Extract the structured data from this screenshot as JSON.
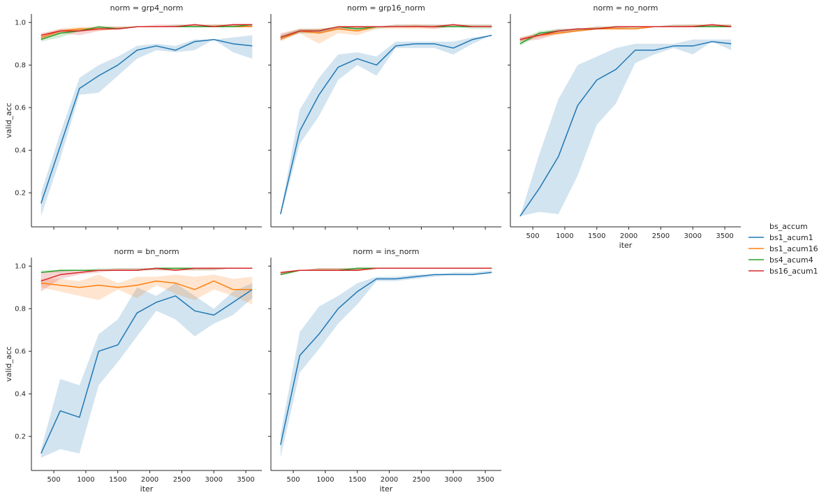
{
  "chart_data": {
    "type": "line",
    "facet_label_prefix": "norm = ",
    "x_label": "iter",
    "y_label": "valid_acc",
    "xlim": [
      150,
      3750
    ],
    "ylim": [
      0.04,
      1.04
    ],
    "x_ticks": [
      500,
      1000,
      1500,
      2000,
      2500,
      3000,
      3500
    ],
    "y_ticks": [
      0.2,
      0.4,
      0.6,
      0.8,
      1.0
    ],
    "x": [
      300,
      600,
      900,
      1200,
      1500,
      1800,
      2100,
      2400,
      2700,
      3000,
      3300,
      3600
    ],
    "legend": {
      "title": "bs_accum",
      "placement": "right",
      "entries": [
        "bs1_acum1",
        "bs1_acum16",
        "bs4_acum4",
        "bs16_acum1"
      ]
    },
    "colors": {
      "bs1_acum1": "#1f77b4",
      "bs1_acum16": "#ff7f0e",
      "bs4_acum4": "#2ca02c",
      "bs16_acum1": "#d62728"
    },
    "panels": [
      {
        "norm": "grp4_norm",
        "series": [
          {
            "name": "bs1_acum1",
            "values": [
              0.15,
              0.42,
              0.69,
              0.75,
              0.8,
              0.87,
              0.89,
              0.87,
              0.91,
              0.92,
              0.9,
              0.89
            ],
            "lower": [
              0.09,
              0.36,
              0.66,
              0.67,
              0.75,
              0.83,
              0.87,
              0.86,
              0.87,
              0.92,
              0.86,
              0.83
            ],
            "upper": [
              0.2,
              0.48,
              0.74,
              0.8,
              0.84,
              0.89,
              0.9,
              0.89,
              0.92,
              0.92,
              0.93,
              0.94
            ]
          },
          {
            "name": "bs1_acum16",
            "values": [
              0.93,
              0.96,
              0.97,
              0.97,
              0.97,
              0.98,
              0.98,
              0.98,
              0.98,
              0.98,
              0.98,
              0.98
            ],
            "lower": [
              0.92,
              0.95,
              0.96,
              0.96,
              0.97,
              0.98,
              0.98,
              0.98,
              0.98,
              0.98,
              0.98,
              0.98
            ],
            "upper": [
              0.94,
              0.97,
              0.98,
              0.98,
              0.98,
              0.98,
              0.98,
              0.98,
              0.98,
              0.99,
              0.99,
              0.99
            ]
          },
          {
            "name": "bs4_acum4",
            "values": [
              0.92,
              0.95,
              0.96,
              0.98,
              0.97,
              0.98,
              0.98,
              0.98,
              0.98,
              0.98,
              0.98,
              0.99
            ],
            "lower": [
              0.91,
              0.93,
              0.96,
              0.97,
              0.97,
              0.98,
              0.98,
              0.98,
              0.98,
              0.98,
              0.98,
              0.98
            ],
            "upper": [
              0.93,
              0.96,
              0.97,
              0.98,
              0.98,
              0.98,
              0.98,
              0.99,
              0.99,
              0.99,
              0.99,
              0.99
            ]
          },
          {
            "name": "bs16_acum1",
            "values": [
              0.94,
              0.96,
              0.96,
              0.97,
              0.97,
              0.98,
              0.98,
              0.98,
              0.99,
              0.98,
              0.99,
              0.99
            ],
            "lower": [
              0.92,
              0.95,
              0.94,
              0.96,
              0.97,
              0.98,
              0.98,
              0.98,
              0.98,
              0.98,
              0.98,
              0.98
            ],
            "upper": [
              0.95,
              0.97,
              0.97,
              0.98,
              0.98,
              0.98,
              0.99,
              0.99,
              0.99,
              0.99,
              0.99,
              0.99
            ]
          }
        ]
      },
      {
        "norm": "grp16_norm",
        "series": [
          {
            "name": "bs1_acum1",
            "values": [
              0.1,
              0.49,
              0.66,
              0.79,
              0.83,
              0.8,
              0.89,
              0.9,
              0.9,
              0.88,
              0.92,
              0.94
            ],
            "lower": [
              0.09,
              0.43,
              0.56,
              0.73,
              0.8,
              0.75,
              0.88,
              0.88,
              0.88,
              0.85,
              0.9,
              0.94
            ],
            "upper": [
              0.11,
              0.59,
              0.74,
              0.85,
              0.86,
              0.84,
              0.91,
              0.91,
              0.91,
              0.91,
              0.93,
              0.94
            ]
          },
          {
            "name": "bs1_acum16",
            "values": [
              0.92,
              0.96,
              0.95,
              0.97,
              0.96,
              0.98,
              0.98,
              0.98,
              0.98,
              0.98,
              0.98,
              0.98
            ],
            "lower": [
              0.91,
              0.95,
              0.9,
              0.95,
              0.94,
              0.97,
              0.97,
              0.97,
              0.97,
              0.98,
              0.98,
              0.98
            ],
            "upper": [
              0.94,
              0.97,
              0.97,
              0.98,
              0.98,
              0.98,
              0.98,
              0.99,
              0.98,
              0.98,
              0.98,
              0.98
            ]
          },
          {
            "name": "bs4_acum4",
            "values": [
              0.93,
              0.96,
              0.96,
              0.98,
              0.97,
              0.98,
              0.98,
              0.98,
              0.98,
              0.98,
              0.98,
              0.98
            ],
            "lower": [
              0.92,
              0.95,
              0.95,
              0.97,
              0.96,
              0.97,
              0.98,
              0.98,
              0.98,
              0.98,
              0.97,
              0.97
            ],
            "upper": [
              0.94,
              0.97,
              0.97,
              0.98,
              0.98,
              0.98,
              0.99,
              0.99,
              0.99,
              0.99,
              0.99,
              0.99
            ]
          },
          {
            "name": "bs16_acum1",
            "values": [
              0.93,
              0.96,
              0.96,
              0.98,
              0.98,
              0.98,
              0.98,
              0.98,
              0.98,
              0.99,
              0.98,
              0.98
            ],
            "lower": [
              0.92,
              0.95,
              0.95,
              0.97,
              0.97,
              0.98,
              0.98,
              0.98,
              0.97,
              0.98,
              0.98,
              0.98
            ],
            "upper": [
              0.95,
              0.97,
              0.97,
              0.98,
              0.98,
              0.98,
              0.99,
              0.99,
              0.99,
              0.99,
              0.99,
              0.99
            ]
          }
        ]
      },
      {
        "norm": "no_norm",
        "series": [
          {
            "name": "bs1_acum1",
            "values": [
              0.09,
              0.22,
              0.37,
              0.61,
              0.73,
              0.78,
              0.87,
              0.87,
              0.89,
              0.89,
              0.91,
              0.9
            ],
            "lower": [
              0.09,
              0.11,
              0.1,
              0.28,
              0.52,
              0.62,
              0.81,
              0.85,
              0.88,
              0.85,
              0.91,
              0.87
            ],
            "upper": [
              0.09,
              0.38,
              0.64,
              0.8,
              0.84,
              0.88,
              0.9,
              0.9,
              0.9,
              0.92,
              0.92,
              0.92
            ]
          },
          {
            "name": "bs1_acum16",
            "values": [
              0.92,
              0.94,
              0.95,
              0.96,
              0.97,
              0.97,
              0.97,
              0.98,
              0.98,
              0.98,
              0.98,
              0.98
            ],
            "lower": [
              0.91,
              0.93,
              0.94,
              0.96,
              0.97,
              0.97,
              0.97,
              0.98,
              0.98,
              0.98,
              0.98,
              0.98
            ],
            "upper": [
              0.93,
              0.95,
              0.96,
              0.97,
              0.98,
              0.98,
              0.98,
              0.98,
              0.98,
              0.99,
              0.99,
              0.99
            ]
          },
          {
            "name": "bs4_acum4",
            "values": [
              0.9,
              0.95,
              0.96,
              0.97,
              0.97,
              0.98,
              0.98,
              0.98,
              0.98,
              0.98,
              0.98,
              0.98
            ],
            "lower": [
              0.89,
              0.94,
              0.95,
              0.96,
              0.97,
              0.97,
              0.97,
              0.98,
              0.98,
              0.98,
              0.98,
              0.98
            ],
            "upper": [
              0.92,
              0.96,
              0.97,
              0.97,
              0.98,
              0.98,
              0.98,
              0.98,
              0.99,
              0.99,
              0.99,
              0.99
            ]
          },
          {
            "name": "bs16_acum1",
            "values": [
              0.92,
              0.94,
              0.96,
              0.97,
              0.97,
              0.98,
              0.98,
              0.98,
              0.98,
              0.98,
              0.99,
              0.98
            ],
            "lower": [
              0.91,
              0.92,
              0.95,
              0.96,
              0.97,
              0.97,
              0.98,
              0.98,
              0.98,
              0.98,
              0.98,
              0.98
            ],
            "upper": [
              0.93,
              0.95,
              0.97,
              0.97,
              0.98,
              0.98,
              0.98,
              0.98,
              0.99,
              0.99,
              0.99,
              0.99
            ]
          }
        ]
      },
      {
        "norm": "bn_norm",
        "series": [
          {
            "name": "bs1_acum1",
            "values": [
              0.12,
              0.32,
              0.29,
              0.6,
              0.63,
              0.78,
              0.83,
              0.86,
              0.79,
              0.77,
              0.83,
              0.89
            ],
            "lower": [
              0.1,
              0.14,
              0.12,
              0.44,
              0.55,
              0.67,
              0.79,
              0.75,
              0.67,
              0.73,
              0.77,
              0.85
            ],
            "upper": [
              0.14,
              0.47,
              0.44,
              0.68,
              0.75,
              0.9,
              0.86,
              0.92,
              0.86,
              0.8,
              0.88,
              0.92
            ]
          },
          {
            "name": "bs1_acum16",
            "values": [
              0.92,
              0.91,
              0.9,
              0.91,
              0.9,
              0.91,
              0.93,
              0.92,
              0.89,
              0.93,
              0.89,
              0.89
            ],
            "lower": [
              0.9,
              0.88,
              0.86,
              0.84,
              0.89,
              0.85,
              0.91,
              0.87,
              0.84,
              0.89,
              0.86,
              0.82
            ],
            "upper": [
              0.94,
              0.94,
              0.93,
              0.96,
              0.92,
              0.95,
              0.95,
              0.96,
              0.95,
              0.96,
              0.94,
              0.95
            ]
          },
          {
            "name": "bs4_acum4",
            "values": [
              0.97,
              0.98,
              0.98,
              0.98,
              0.98,
              0.98,
              0.99,
              0.99,
              0.99,
              0.99,
              0.99,
              0.99
            ],
            "lower": [
              0.97,
              0.97,
              0.98,
              0.98,
              0.98,
              0.98,
              0.98,
              0.98,
              0.98,
              0.98,
              0.99,
              0.99
            ],
            "upper": [
              0.98,
              0.98,
              0.98,
              0.99,
              0.99,
              0.99,
              0.99,
              0.99,
              0.99,
              0.99,
              0.99,
              0.99
            ]
          },
          {
            "name": "bs16_acum1",
            "values": [
              0.93,
              0.96,
              0.97,
              0.98,
              0.98,
              0.98,
              0.99,
              0.98,
              0.99,
              0.99,
              0.99,
              0.99
            ],
            "lower": [
              0.88,
              0.94,
              0.96,
              0.97,
              0.98,
              0.98,
              0.98,
              0.98,
              0.98,
              0.98,
              0.99,
              0.99
            ],
            "upper": [
              0.97,
              0.98,
              0.98,
              0.98,
              0.99,
              0.99,
              0.99,
              0.99,
              0.99,
              0.99,
              0.99,
              0.99
            ]
          }
        ]
      },
      {
        "norm": "ins_norm",
        "series": [
          {
            "name": "bs1_acum1",
            "values": [
              0.16,
              0.58,
              0.68,
              0.8,
              0.88,
              0.94,
              0.94,
              0.95,
              0.96,
              0.96,
              0.96,
              0.97
            ],
            "lower": [
              0.1,
              0.5,
              0.61,
              0.73,
              0.82,
              0.93,
              0.93,
              0.94,
              0.95,
              0.96,
              0.96,
              0.97
            ],
            "upper": [
              0.21,
              0.69,
              0.81,
              0.86,
              0.92,
              0.95,
              0.95,
              0.96,
              0.96,
              0.97,
              0.97,
              0.98
            ]
          },
          {
            "name": "bs1_acum16",
            "values": [
              0.96,
              0.98,
              0.98,
              0.98,
              0.98,
              0.99,
              0.99,
              0.99,
              0.99,
              0.99,
              0.99,
              0.99
            ],
            "lower": [
              0.96,
              0.98,
              0.98,
              0.98,
              0.98,
              0.99,
              0.99,
              0.99,
              0.99,
              0.99,
              0.99,
              0.99
            ],
            "upper": [
              0.97,
              0.98,
              0.99,
              0.99,
              0.99,
              0.99,
              0.99,
              0.99,
              0.99,
              0.99,
              0.99,
              0.99
            ]
          },
          {
            "name": "bs4_acum4",
            "values": [
              0.96,
              0.98,
              0.98,
              0.98,
              0.99,
              0.99,
              0.99,
              0.99,
              0.99,
              0.99,
              0.99,
              0.99
            ],
            "lower": [
              0.96,
              0.98,
              0.98,
              0.98,
              0.98,
              0.99,
              0.99,
              0.99,
              0.99,
              0.99,
              0.99,
              0.99
            ],
            "upper": [
              0.97,
              0.98,
              0.99,
              0.99,
              0.99,
              0.99,
              0.99,
              0.99,
              0.99,
              0.99,
              0.99,
              0.99
            ]
          },
          {
            "name": "bs16_acum1",
            "values": [
              0.97,
              0.98,
              0.98,
              0.98,
              0.98,
              0.99,
              0.99,
              0.99,
              0.99,
              0.99,
              0.99,
              0.99
            ],
            "lower": [
              0.96,
              0.98,
              0.98,
              0.98,
              0.98,
              0.99,
              0.99,
              0.99,
              0.99,
              0.99,
              0.99,
              0.99
            ],
            "upper": [
              0.97,
              0.98,
              0.99,
              0.99,
              0.99,
              0.99,
              0.99,
              0.99,
              0.99,
              0.99,
              0.99,
              0.99
            ]
          }
        ]
      }
    ]
  }
}
